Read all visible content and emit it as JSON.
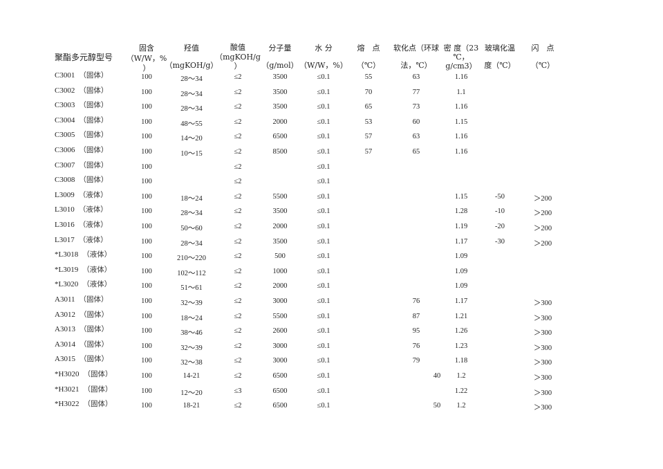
{
  "header": {
    "model": "聚酯多元醇型号",
    "solid": [
      "固含",
      "（W/W，%",
      "）"
    ],
    "hydroxyl": [
      "羟值",
      "（mgKOH/g）"
    ],
    "acid": [
      "酸值",
      "（mgKOH/g",
      "）"
    ],
    "mw": [
      "分子量",
      "（g/mol）"
    ],
    "water": [
      "水 分",
      "（W/W，%）"
    ],
    "mp": [
      "熔　点",
      "（℃）"
    ],
    "soft": [
      "软化点（环球",
      "法，℃）"
    ],
    "density": [
      "密 度（23",
      "℃，",
      "g/cm3）"
    ],
    "tg": [
      "玻璃化温",
      "度（℃）"
    ],
    "flash": [
      "闪　点",
      "（℃）"
    ]
  },
  "rows": [
    {
      "model": "C3001",
      "state": "（固体）",
      "solid": "100",
      "hydroxyl": "28～34",
      "acid": "≤2",
      "mw": "3500",
      "water": "≤0.1",
      "mp": "55",
      "soft": "63",
      "density": "1.16",
      "tg": "",
      "flash": ""
    },
    {
      "model": "C3002",
      "state": "（固体）",
      "solid": "100",
      "hydroxyl": "28～34",
      "acid": "≤2",
      "mw": "3500",
      "water": "≤0.1",
      "mp": "70",
      "soft": "77",
      "density": "1.1",
      "tg": "",
      "flash": ""
    },
    {
      "model": "C3003",
      "state": "（固体）",
      "solid": "100",
      "hydroxyl": "28～34",
      "acid": "≤2",
      "mw": "3500",
      "water": "≤0.1",
      "mp": "65",
      "soft": "73",
      "density": "1.16",
      "tg": "",
      "flash": ""
    },
    {
      "model": "C3004",
      "state": "（固体）",
      "solid": "100",
      "hydroxyl": "48～55",
      "acid": "≤2",
      "mw": "2000",
      "water": "≤0.1",
      "mp": "53",
      "soft": "60",
      "density": "1.15",
      "tg": "",
      "flash": ""
    },
    {
      "model": "C3005",
      "state": "（固体）",
      "solid": "100",
      "hydroxyl": "14～20",
      "acid": "≤2",
      "mw": "6500",
      "water": "≤0.1",
      "mp": "57",
      "soft": "63",
      "density": "1.16",
      "tg": "",
      "flash": ""
    },
    {
      "model": "C3006",
      "state": "（固体）",
      "solid": "100",
      "hydroxyl": "10～15",
      "acid": "≤2",
      "mw": "8500",
      "water": "≤0.1",
      "mp": "57",
      "soft": "65",
      "density": "1.16",
      "tg": "",
      "flash": ""
    },
    {
      "model": "C3007",
      "state": "（固体）",
      "solid": "100",
      "hydroxyl": "",
      "acid": "≤2",
      "mw": "",
      "water": "≤0.1",
      "mp": "",
      "soft": "",
      "density": "",
      "tg": "",
      "flash": ""
    },
    {
      "model": "C3008",
      "state": "（固体）",
      "solid": "100",
      "hydroxyl": "",
      "acid": "≤2",
      "mw": "",
      "water": "≤0.1",
      "mp": "",
      "soft": "",
      "density": "",
      "tg": "",
      "flash": ""
    },
    {
      "model": "L3009",
      "state": "（液体）",
      "solid": "100",
      "hydroxyl": "18～24",
      "acid": "≤2",
      "mw": "5500",
      "water": "≤0.1",
      "mp": "",
      "soft": "",
      "density": "1.15",
      "tg": "-50",
      "flash": "＞200"
    },
    {
      "model": "L3010",
      "state": "（液体）",
      "solid": "100",
      "hydroxyl": "28～34",
      "acid": "≤2",
      "mw": "3500",
      "water": "≤0.1",
      "mp": "",
      "soft": "",
      "density": "1.28",
      "tg": "-10",
      "flash": "＞200"
    },
    {
      "model": "L3016",
      "state": "（液体）",
      "solid": "100",
      "hydroxyl": "50～60",
      "acid": "≤2",
      "mw": "2000",
      "water": "≤0.1",
      "mp": "",
      "soft": "",
      "density": "1.19",
      "tg": "-20",
      "flash": "＞200"
    },
    {
      "model": "L3017",
      "state": "（液体）",
      "solid": "100",
      "hydroxyl": "28～34",
      "acid": "≤2",
      "mw": "3500",
      "water": "≤0.1",
      "mp": "",
      "soft": "",
      "density": "1.17",
      "tg": "-30",
      "flash": "＞200"
    },
    {
      "model": "*L3018",
      "state": "（液体）",
      "solid": "100",
      "hydroxyl": "210～220",
      "acid": "≤2",
      "mw": "500",
      "water": "≤0.1",
      "mp": "",
      "soft": "",
      "density": "1.09",
      "tg": "",
      "flash": ""
    },
    {
      "model": "*L3019",
      "state": "（液体）",
      "solid": "100",
      "hydroxyl": "102～112",
      "acid": "≤2",
      "mw": "1000",
      "water": "≤0.1",
      "mp": "",
      "soft": "",
      "density": "1.09",
      "tg": "",
      "flash": ""
    },
    {
      "model": "*L3020",
      "state": "（液体）",
      "solid": "100",
      "hydroxyl": "51～61",
      "acid": "≤2",
      "mw": "2000",
      "water": "≤0.1",
      "mp": "",
      "soft": "",
      "density": "1.09",
      "tg": "",
      "flash": ""
    },
    {
      "model": "A3011",
      "state": "（固体）",
      "solid": "100",
      "hydroxyl": "32～39",
      "acid": "≤2",
      "mw": "3000",
      "water": "≤0.1",
      "mp": "",
      "soft": "76",
      "density": "1.17",
      "tg": "",
      "flash": "＞300"
    },
    {
      "model": "A3012",
      "state": "（固体）",
      "solid": "100",
      "hydroxyl": "18～24",
      "acid": "≤2",
      "mw": "5500",
      "water": "≤0.1",
      "mp": "",
      "soft": "87",
      "density": "1.21",
      "tg": "",
      "flash": "＞300"
    },
    {
      "model": "A3013",
      "state": "（固体）",
      "solid": "100",
      "hydroxyl": "38～46",
      "acid": "≤2",
      "mw": "2600",
      "water": "≤0.1",
      "mp": "",
      "soft": "95",
      "density": "1.26",
      "tg": "",
      "flash": "＞300"
    },
    {
      "model": "A3014",
      "state": "（固体）",
      "solid": "100",
      "hydroxyl": "32～39",
      "acid": "≤2",
      "mw": "3000",
      "water": "≤0.1",
      "mp": "",
      "soft": "76",
      "density": "1.23",
      "tg": "",
      "flash": "＞300"
    },
    {
      "model": "A3015",
      "state": "（固体）",
      "solid": "100",
      "hydroxyl": "32～38",
      "acid": "≤2",
      "mw": "3000",
      "water": "≤0.1",
      "mp": "",
      "soft": "79",
      "density": "1.18",
      "tg": "",
      "flash": "＞300"
    },
    {
      "model": "*H3020",
      "state": "（固体）",
      "solid": "100",
      "hydroxyl": "14-21",
      "acid": "≤2",
      "mw": "6500",
      "water": "≤0.1",
      "mp": "",
      "soft": "40",
      "density": "1.2",
      "tg": "",
      "flash": "＞300"
    },
    {
      "model": "*H3021",
      "state": "（固体）",
      "solid": "100",
      "hydroxyl": "12～20",
      "acid": "≤3",
      "mw": "6500",
      "water": "≤0.1",
      "mp": "",
      "soft": "",
      "density": "1.22",
      "tg": "",
      "flash": "＞300"
    },
    {
      "model": "*H3022",
      "state": "（固体）",
      "solid": "100",
      "hydroxyl": "18-21",
      "acid": "≤2",
      "mw": "6500",
      "water": "≤0.1",
      "mp": "",
      "soft": "50",
      "density": "1.2",
      "tg": "",
      "flash": "＞300"
    }
  ]
}
